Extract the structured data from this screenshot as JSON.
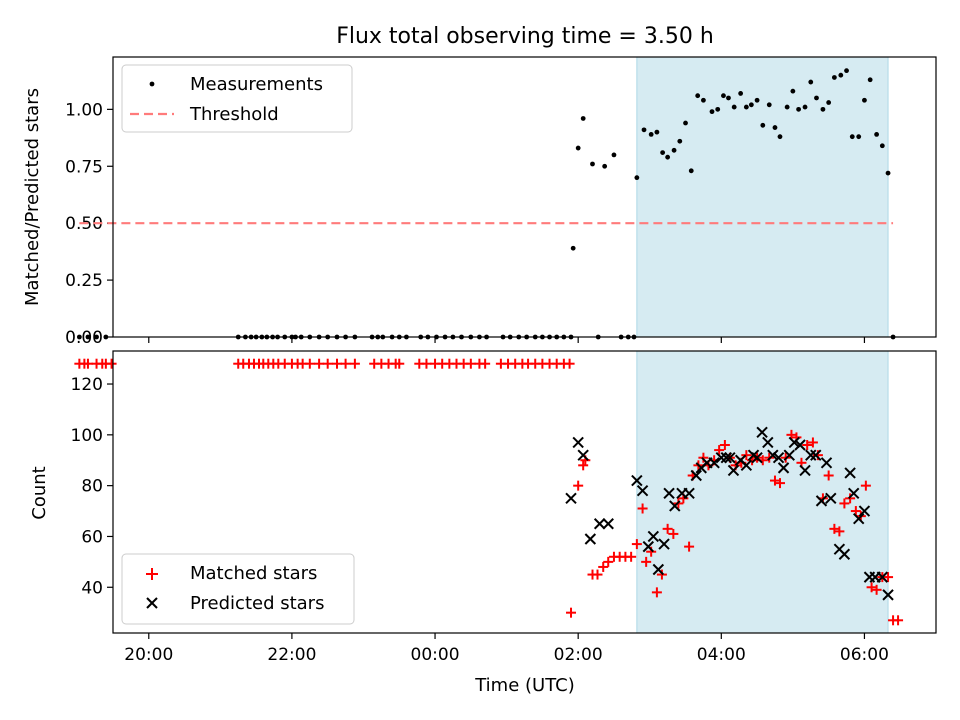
{
  "chart_data": [
    {
      "type": "scatter",
      "title": "Flux total observing time = 3.50 h",
      "xlabel": "",
      "ylabel": "Matched/Predicted stars",
      "xlim": [
        -4.5,
        7.0
      ],
      "ylim": [
        0,
        1.23
      ],
      "xticks": [
        {
          "value": -4,
          "label": "20:00"
        },
        {
          "value": -2,
          "label": "22:00"
        },
        {
          "value": 0,
          "label": "00:00"
        },
        {
          "value": 2,
          "label": "02:00"
        },
        {
          "value": 4,
          "label": "04:00"
        },
        {
          "value": 6,
          "label": "06:00"
        }
      ],
      "yticks": [
        {
          "value": 0.0,
          "label": "0.00"
        },
        {
          "value": 0.25,
          "label": "0.25"
        },
        {
          "value": 0.5,
          "label": "0.50"
        },
        {
          "value": 0.75,
          "label": "0.75"
        },
        {
          "value": 1.0,
          "label": "1.00"
        }
      ],
      "shaded_region": [
        2.82,
        6.33
      ],
      "legend_position": "top-left",
      "series": [
        {
          "name": "Measurements",
          "marker": "dot",
          "color": "#000000",
          "x": [
            -4.97,
            -4.85,
            -4.73,
            -4.6,
            -2.75,
            -2.65,
            -2.57,
            -2.5,
            -2.42,
            -2.35,
            -2.27,
            -2.2,
            -2.1,
            -2.0,
            -1.95,
            -1.87,
            -1.75,
            -1.62,
            -1.5,
            -1.37,
            -1.25,
            -1.12,
            -0.88,
            -0.8,
            -0.73,
            -0.6,
            -0.5,
            -0.4,
            -0.2,
            -0.1,
            0.02,
            0.14,
            0.25,
            0.37,
            0.5,
            0.62,
            0.72,
            0.95,
            1.05,
            1.17,
            1.28,
            1.4,
            1.5,
            1.6,
            1.7,
            1.8,
            1.9,
            1.93,
            2.0,
            2.07,
            2.2,
            2.28,
            2.37,
            2.5,
            2.6,
            2.7,
            2.78,
            2.82,
            2.92,
            3.02,
            3.1,
            3.18,
            3.25,
            3.34,
            3.42,
            3.5,
            3.58,
            3.67,
            3.75,
            3.87,
            3.95,
            4.03,
            4.1,
            4.18,
            4.27,
            4.35,
            4.42,
            4.5,
            4.58,
            4.67,
            4.75,
            4.82,
            4.92,
            5.0,
            5.08,
            5.17,
            5.25,
            5.33,
            5.42,
            5.5,
            5.58,
            5.67,
            5.75,
            5.83,
            5.92,
            6.0,
            6.08,
            6.17,
            6.25,
            6.33,
            6.4
          ],
          "y": [
            0,
            0,
            0,
            0,
            0,
            0,
            0,
            0,
            0,
            0,
            0,
            0,
            0,
            0,
            0,
            0,
            0,
            0,
            0,
            0,
            0,
            0,
            0,
            0,
            0,
            0,
            0,
            0,
            0,
            0,
            0,
            0,
            0,
            0,
            0,
            0,
            0,
            0,
            0,
            0,
            0,
            0,
            0,
            0,
            0,
            0,
            0,
            0.39,
            0.83,
            0.96,
            0.76,
            0,
            0.75,
            0.8,
            0,
            0,
            0,
            0.7,
            0.91,
            0.89,
            0.9,
            0.81,
            0.79,
            0.82,
            0.86,
            0.94,
            0.73,
            1.06,
            1.04,
            0.99,
            1.0,
            1.06,
            1.05,
            1.01,
            1.07,
            1.01,
            1.02,
            1.04,
            0.93,
            1.02,
            0.92,
            0.88,
            1.01,
            1.08,
            1.0,
            1.01,
            1.12,
            1.05,
            1.0,
            1.03,
            1.14,
            1.15,
            1.17,
            0.88,
            0.88,
            1.04,
            1.13,
            0.89,
            0.84,
            0.72,
            0
          ]
        },
        {
          "name": "Threshold",
          "marker": "dashed-line",
          "color": "#ff7b7b",
          "x": [
            -4.97,
            6.4
          ],
          "y": [
            0.5,
            0.5
          ]
        }
      ]
    },
    {
      "type": "scatter",
      "title": "",
      "xlabel": "Time (UTC)",
      "ylabel": "Count",
      "xlim": [
        -4.5,
        7.0
      ],
      "ylim": [
        22,
        133
      ],
      "xticks": [
        {
          "value": -4,
          "label": "20:00"
        },
        {
          "value": -2,
          "label": "22:00"
        },
        {
          "value": 0,
          "label": "00:00"
        },
        {
          "value": 2,
          "label": "02:00"
        },
        {
          "value": 4,
          "label": "04:00"
        },
        {
          "value": 6,
          "label": "06:00"
        }
      ],
      "yticks": [
        {
          "value": 40,
          "label": "40"
        },
        {
          "value": 60,
          "label": "60"
        },
        {
          "value": 80,
          "label": "80"
        },
        {
          "value": 100,
          "label": "100"
        },
        {
          "value": 120,
          "label": "120"
        }
      ],
      "shaded_region": [
        2.82,
        6.33
      ],
      "legend_position": "bottom-left",
      "series": [
        {
          "name": "Matched stars",
          "marker": "plus",
          "color": "#ff0000",
          "x": [
            -4.97,
            -4.9,
            -4.85,
            -4.73,
            -4.65,
            -4.6,
            -4.52,
            -2.75,
            -2.68,
            -2.6,
            -2.53,
            -2.46,
            -2.4,
            -2.33,
            -2.26,
            -2.19,
            -2.1,
            -2.0,
            -1.92,
            -1.85,
            -1.75,
            -1.62,
            -1.5,
            -1.37,
            -1.25,
            -1.12,
            -0.85,
            -0.75,
            -0.65,
            -0.55,
            -0.5,
            -0.22,
            -0.12,
            0.0,
            0.1,
            0.2,
            0.3,
            0.4,
            0.5,
            0.62,
            0.7,
            0.92,
            1.02,
            1.12,
            1.22,
            1.3,
            1.4,
            1.5,
            1.6,
            1.7,
            1.8,
            1.88,
            1.9,
            2.0,
            2.07,
            2.1,
            2.2,
            2.27,
            2.35,
            2.42,
            2.5,
            2.58,
            2.66,
            2.74,
            2.82,
            2.9,
            2.95,
            3.02,
            3.1,
            3.17,
            3.25,
            3.33,
            3.4,
            3.47,
            3.55,
            3.6,
            3.68,
            3.75,
            3.82,
            3.9,
            3.97,
            4.05,
            4.12,
            4.2,
            4.28,
            4.35,
            4.43,
            4.5,
            4.58,
            4.67,
            4.75,
            4.82,
            4.9,
            4.98,
            5.05,
            5.12,
            5.2,
            5.28,
            5.35,
            5.42,
            5.5,
            5.58,
            5.65,
            5.72,
            5.8,
            5.88,
            5.95,
            6.02,
            6.1,
            6.17,
            6.25,
            6.33,
            6.4,
            6.47
          ],
          "y": [
            128,
            128,
            128,
            128,
            128,
            128,
            128,
            128,
            128,
            128,
            128,
            128,
            128,
            128,
            128,
            128,
            128,
            128,
            128,
            128,
            128,
            128,
            128,
            128,
            128,
            128,
            128,
            128,
            128,
            128,
            128,
            128,
            128,
            128,
            128,
            128,
            128,
            128,
            128,
            128,
            128,
            128,
            128,
            128,
            128,
            128,
            128,
            128,
            128,
            128,
            128,
            128,
            30,
            80,
            88,
            90,
            45,
            45,
            48,
            50,
            52,
            52,
            52,
            52,
            57,
            71,
            50,
            54,
            38,
            45,
            63,
            61,
            73,
            75,
            56,
            84,
            88,
            91,
            88,
            90,
            94,
            96,
            91,
            88,
            89,
            92,
            90,
            91,
            90,
            91,
            82,
            81,
            91,
            100,
            99,
            89,
            96,
            97,
            92,
            75,
            84,
            63,
            62,
            73,
            75,
            70,
            68,
            80,
            40,
            39,
            44,
            44,
            27,
            27
          ]
        },
        {
          "name": "Predicted stars",
          "marker": "x",
          "color": "#000000",
          "x": [
            1.9,
            2.0,
            2.07,
            2.17,
            2.3,
            2.42,
            2.82,
            2.9,
            2.98,
            3.05,
            3.12,
            3.2,
            3.27,
            3.35,
            3.45,
            3.55,
            3.65,
            3.72,
            3.8,
            3.9,
            4.0,
            4.07,
            4.12,
            4.17,
            4.27,
            4.35,
            4.45,
            4.5,
            4.57,
            4.65,
            4.72,
            4.8,
            4.87,
            4.95,
            5.02,
            5.1,
            5.17,
            5.25,
            5.32,
            5.4,
            5.47,
            5.53,
            5.65,
            5.72,
            5.8,
            5.85,
            5.92,
            6.0,
            6.07,
            6.15,
            6.25,
            6.33
          ],
          "y": [
            75,
            97,
            92,
            59,
            65,
            65,
            82,
            78,
            56,
            60,
            47,
            57,
            77,
            72,
            77,
            77,
            84,
            87,
            89,
            89,
            91,
            91,
            91,
            86,
            90,
            88,
            92,
            91,
            101,
            97,
            92,
            91,
            87,
            92,
            97,
            96,
            86,
            92,
            92,
            74,
            89,
            75,
            55,
            53,
            85,
            77,
            67,
            70,
            44,
            44,
            44,
            37
          ]
        }
      ]
    }
  ]
}
